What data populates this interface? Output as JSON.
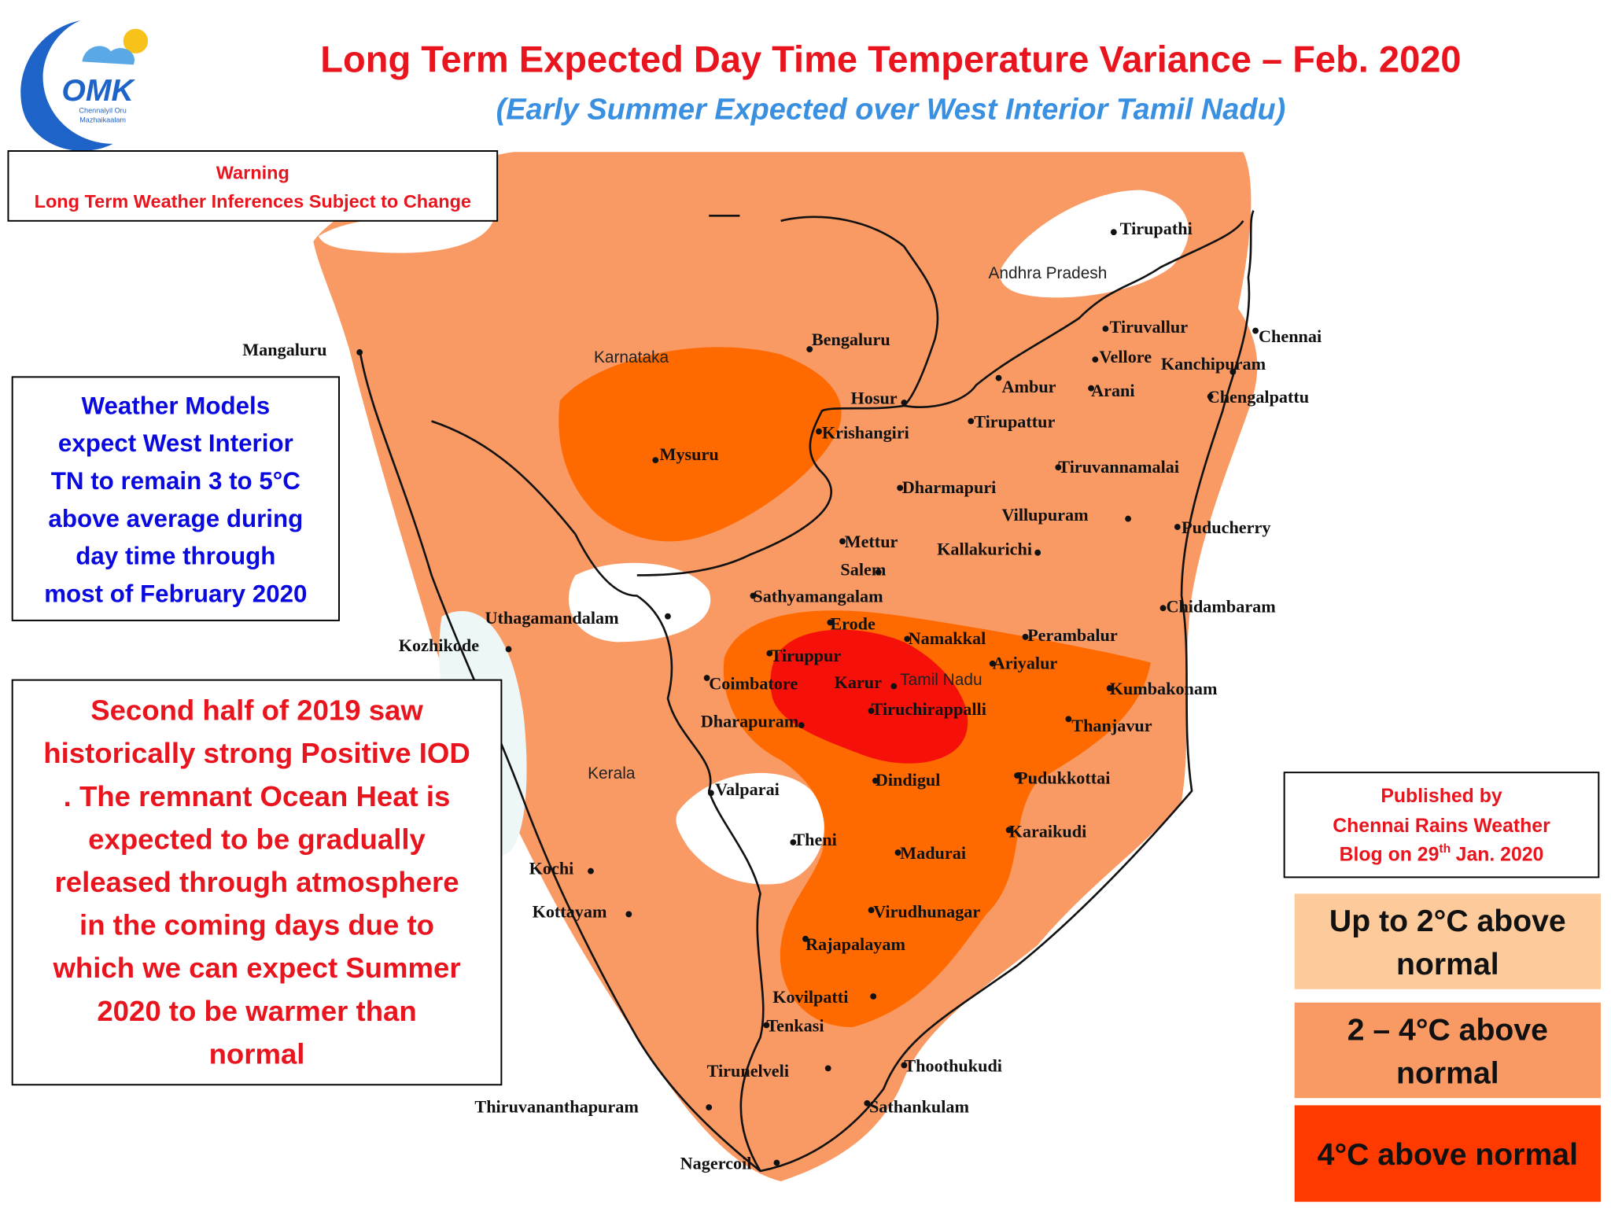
{
  "logo": {
    "text": "OMK",
    "tagline": [
      "Chennaiyil Oru",
      "Mazhaikaalam"
    ]
  },
  "header": {
    "title": "Long Term Expected Day Time Temperature Variance – Feb. 2020",
    "subtitle": "(Early Summer Expected over West Interior Tamil Nadu)"
  },
  "warning": {
    "heading": "Warning",
    "text": "Long Term Weather Inferences Subject to Change"
  },
  "model_note": [
    "Weather Models",
    "expect West Interior",
    "TN to remain 3 to 5°C",
    "above average during",
    "day time through",
    "most of February 2020"
  ],
  "iod_note": [
    "Second half of 2019 saw",
    "historically strong Positive IOD",
    ".  The remnant Ocean Heat is",
    "expected to be gradually",
    "released through atmosphere",
    "in the coming days due to",
    "which we can expect Summer",
    "2020 to be warmer than",
    "normal"
  ],
  "published": {
    "line1": "Published by",
    "line2": "Chennai Rains Weather",
    "date_prefix": "Blog on 29",
    "date_sup": "th",
    "date_suffix": "Jan. 2020"
  },
  "legend": [
    {
      "lines": [
        "Up to 2°C above",
        "normal"
      ],
      "color": "#fdcb9b"
    },
    {
      "lines": [
        "2 – 4°C above",
        "normal"
      ],
      "color": "#f99a64"
    },
    {
      "lines": [
        "4°C above normal"
      ],
      "color": "#ff3a00"
    }
  ],
  "regions": [
    "Andhra Pradesh",
    "Karnataka",
    "Kerala",
    "Tamil Nadu"
  ],
  "places": [
    "Tirupathi",
    "Mangaluru",
    "Bengaluru",
    "Tiruvallur",
    "Chennai",
    "Vellore",
    "Kanchipuram",
    "Ambur",
    "Arani",
    "Chengalpattu",
    "Hosur",
    "Krishangiri",
    "Tirupattur",
    "Mysuru",
    "Tiruvannamalai",
    "Dharmapuri",
    "Villupuram",
    "Puducherry",
    "Mettur",
    "Kallakurichi",
    "Salem",
    "Sathyamangalam",
    "Uthagamandalam",
    "Chidambaram",
    "Erode",
    "Kozhikode",
    "Namakkal",
    "Perambalur",
    "Tiruppur",
    "Ariyalur",
    "Coimbatore",
    "Karur",
    "Kumbakonam",
    "Tiruchirappalli",
    "Dharapuram",
    "Thanjavur",
    "Pudukkottai",
    "Dindigul",
    "Valparai",
    "Karaikudi",
    "Theni",
    "Madurai",
    "Kochi",
    "Kottayam",
    "Virudhunagar",
    "Rajapalayam",
    "Kovilpatti",
    "Tenkasi",
    "Tirunelveli",
    "Thoothukudi",
    "Thiruvananthapuram",
    "Sathankulam",
    "Nagercoil"
  ]
}
